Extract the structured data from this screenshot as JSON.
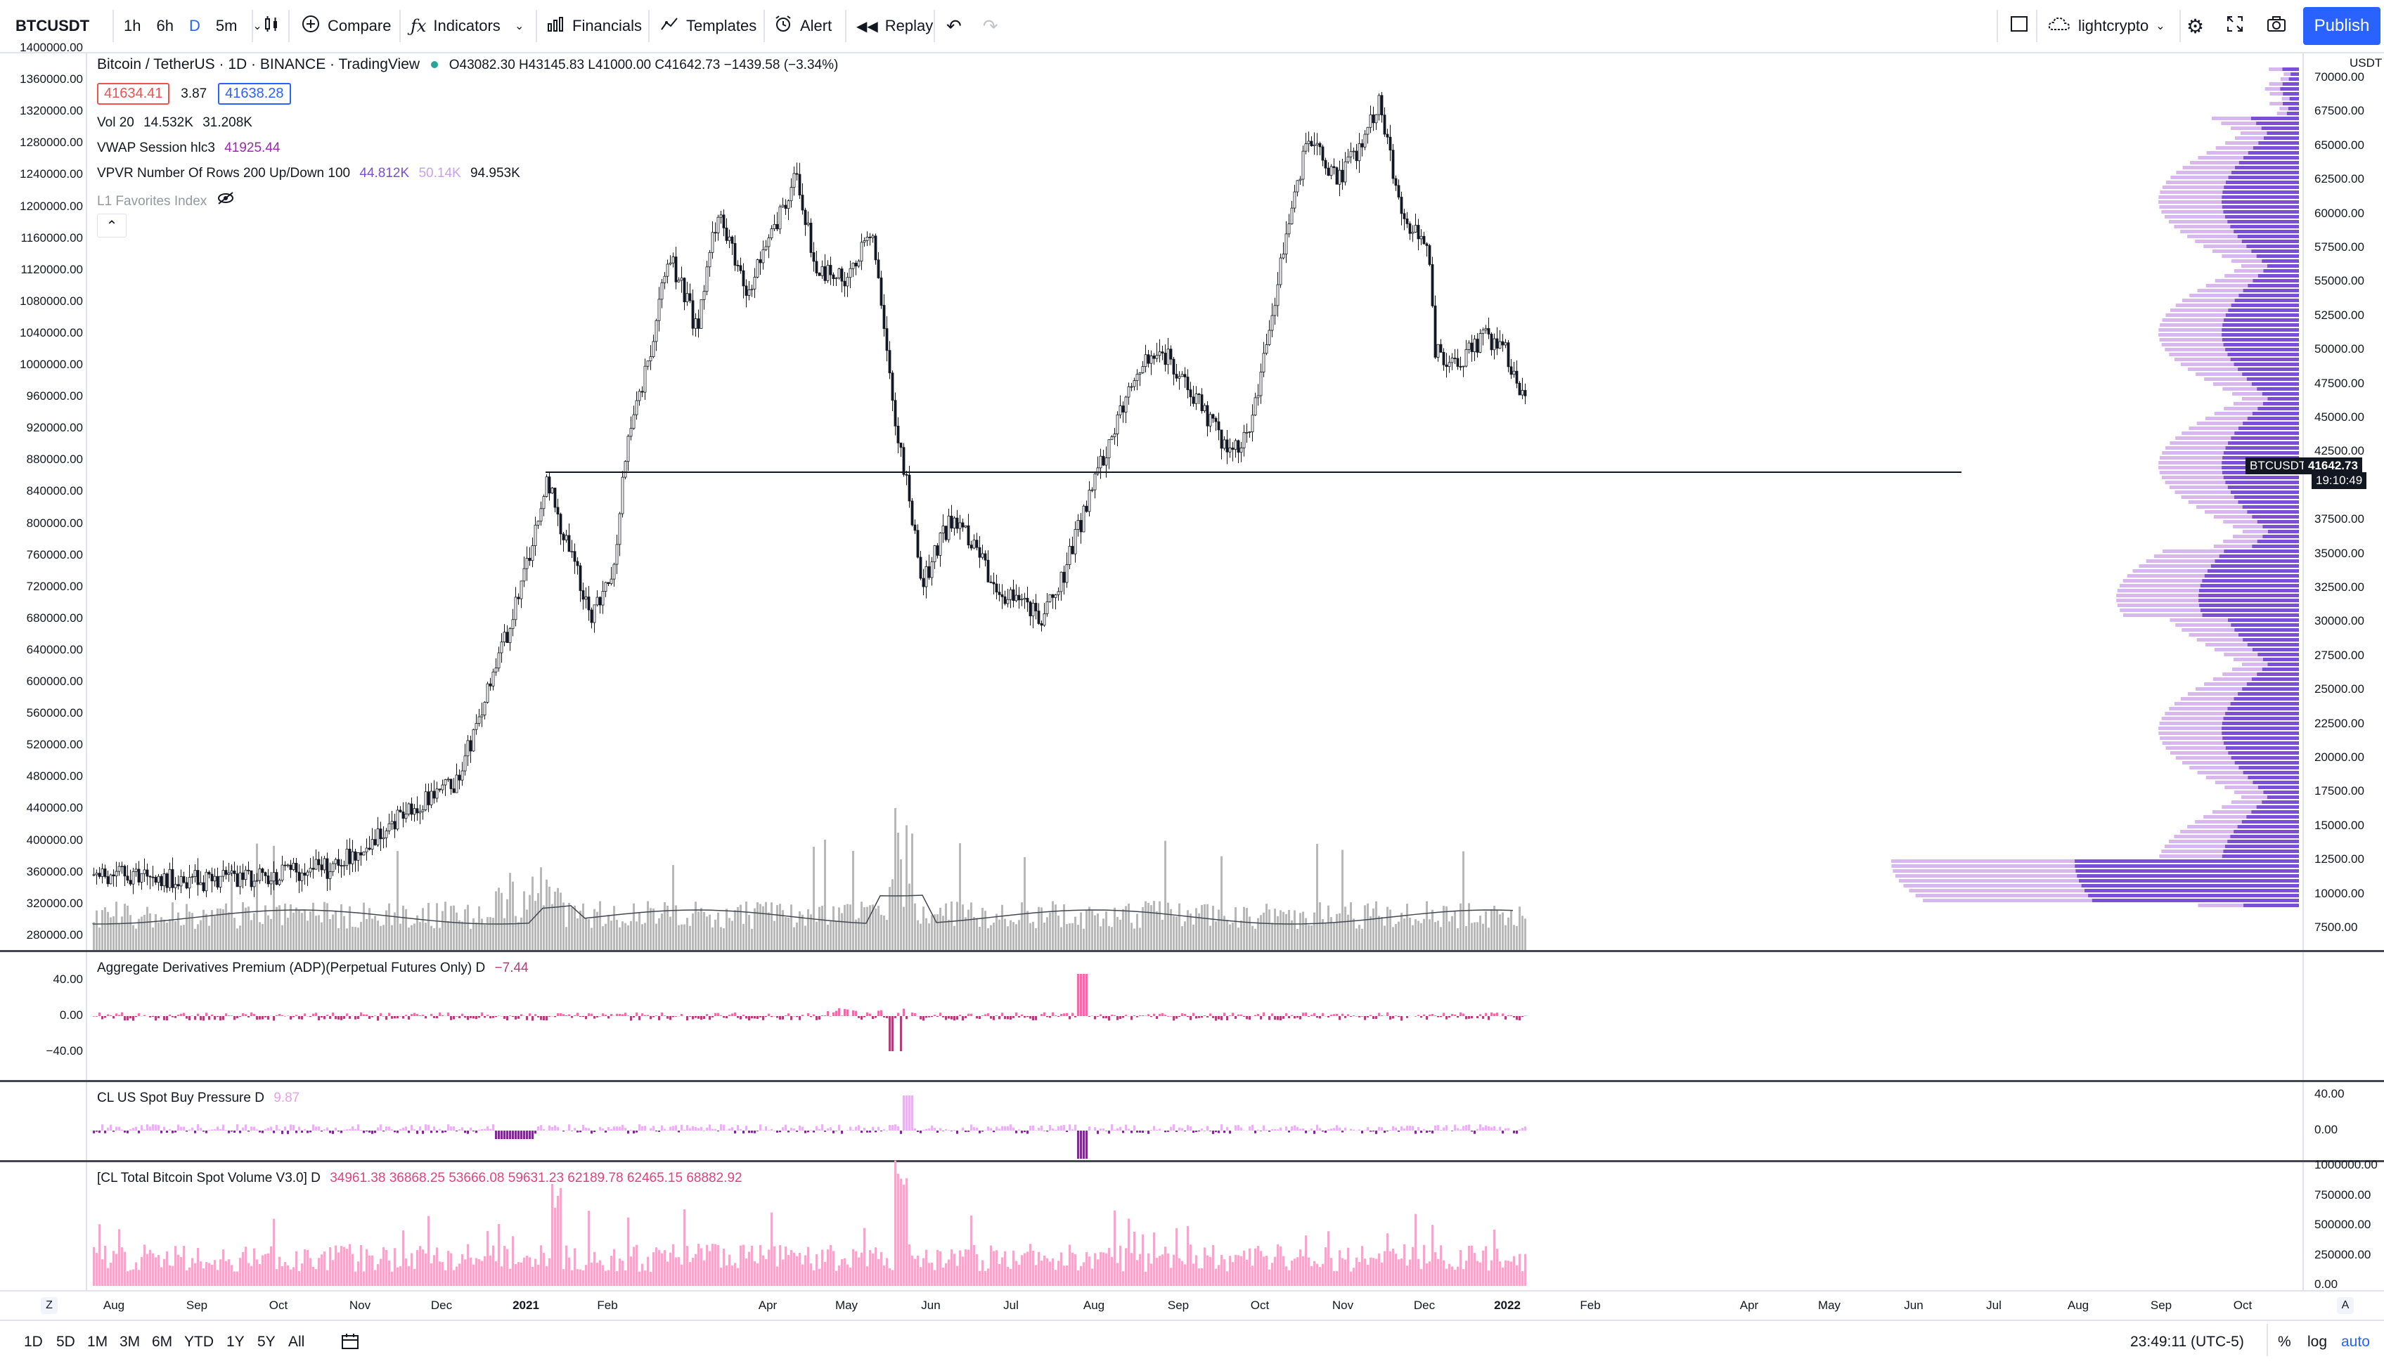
{
  "toolbar": {
    "symbol": "BTCUSDT",
    "intervals": [
      "1h",
      "6h",
      "D",
      "5m"
    ],
    "compare": "Compare",
    "indicators": "Indicators",
    "financials": "Financials",
    "templates": "Templates",
    "alert": "Alert",
    "replay": "Replay",
    "layout_name": "lightcrypto",
    "publish": "Publish"
  },
  "main_legend": {
    "title": "Bitcoin / TetherUS · 1D · BINANCE · TradingView",
    "ohlc": "O43082.30 H43145.83 L41000.00 C41642.73 −1439.58 (−3.34%)",
    "bid": "41634.41",
    "spread": "3.87",
    "ask": "41638.28",
    "vol_label": "Vol 20",
    "vol_v1": "14.532K",
    "vol_v2": "31.208K",
    "vwap_label": "VWAP Session hlc3",
    "vwap_value": "41925.44",
    "vpvr_label": "VPVR Number Of Rows 200 Up/Down 100",
    "vpvr_v1": "44.812K",
    "vpvr_v2": "50.14K",
    "vpvr_v3": "94.953K",
    "fav_label": "L1 Favorites Index"
  },
  "left_axis": [
    "1400000.00",
    "1360000.00",
    "1320000.00",
    "1280000.00",
    "1240000.00",
    "1200000.00",
    "1160000.00",
    "1120000.00",
    "1080000.00",
    "1040000.00",
    "1000000.00",
    "960000.00",
    "920000.00",
    "880000.00",
    "840000.00",
    "800000.00",
    "760000.00",
    "720000.00",
    "680000.00",
    "640000.00",
    "600000.00",
    "560000.00",
    "520000.00",
    "480000.00",
    "440000.00",
    "400000.00",
    "360000.00",
    "320000.00",
    "280000.00"
  ],
  "right_axis": {
    "currency": "USDT",
    "labels": [
      "70000.00",
      "67500.00",
      "65000.00",
      "62500.00",
      "60000.00",
      "57500.00",
      "55000.00",
      "52500.00",
      "50000.00",
      "47500.00",
      "45000.00",
      "42500.00",
      "40000.00",
      "37500.00",
      "35000.00",
      "32500.00",
      "30000.00",
      "27500.00",
      "25000.00",
      "22500.00",
      "20000.00",
      "17500.00",
      "15000.00",
      "12500.00",
      "10000.00",
      "7500.00"
    ],
    "price_tag_symbol": "BTCUSDT",
    "price_tag_value": "41642.73",
    "price_tag_timer": "19:10:49"
  },
  "pane_adp": {
    "label": "Aggregate Derivatives Premium (ADP)(Perpetual Futures Only) D",
    "value": "−7.44",
    "axis": [
      "40.00",
      "0.00",
      "−40.00"
    ]
  },
  "pane_buy": {
    "label": "CL US Spot Buy Pressure D",
    "value": "9.87",
    "axis": [
      "40.00",
      "0.00"
    ]
  },
  "pane_vol": {
    "label": "[CL Total Bitcoin Spot Volume V3.0] D",
    "values": "34961.38 36868.25 53666.08 59631.23 62189.78 62465.15 68882.92",
    "axis": [
      "1000000.00",
      "750000.00",
      "500000.00",
      "250000.00",
      "0.00"
    ]
  },
  "time_axis": [
    "Aug",
    "Sep",
    "Oct",
    "Nov",
    "Dec",
    "2021",
    "Feb",
    "Apr",
    "May",
    "Jun",
    "Jul",
    "Aug",
    "Sep",
    "Oct",
    "Nov",
    "Dec",
    "2022",
    "Feb",
    "Apr",
    "May",
    "Jun",
    "Jul",
    "Aug",
    "Sep",
    "Oct"
  ],
  "bottom": {
    "ranges": [
      "1D",
      "5D",
      "1M",
      "3M",
      "6M",
      "YTD",
      "1Y",
      "5Y",
      "All"
    ],
    "clock": "23:49:11 (UTC-5)",
    "percent": "%",
    "log": "log",
    "auto": "auto",
    "z": "Z",
    "a": "A"
  },
  "colors": {
    "accent": "#2962ff",
    "candle": "#131722",
    "volume": "#b8b8b8",
    "profile_up": "#7a4fd6",
    "profile_light": "#d8b7ee",
    "pink": "#f06ba8",
    "adp_neg": "#b0407a",
    "buy_pos": "#e8b4f0",
    "buy_neg": "#7b2d8e"
  }
}
